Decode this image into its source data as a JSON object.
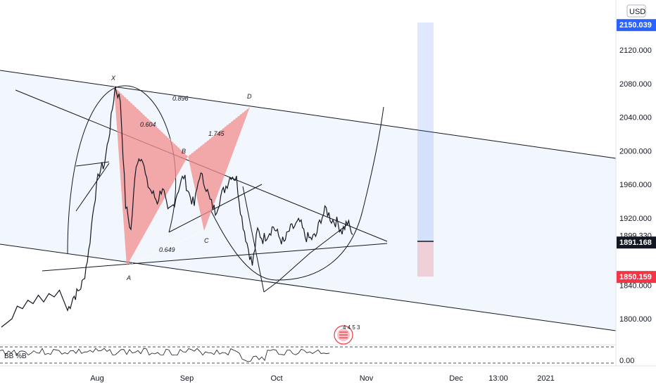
{
  "chart_data": {
    "type": "line",
    "currency": "USD",
    "y_ticks": [
      "2120.000",
      "2080.000",
      "2040.000",
      "2000.000",
      "1960.000",
      "1920.000",
      "1840.000",
      "1800.000"
    ],
    "y_tick_values": [
      2120,
      2080,
      2040,
      2000,
      1960,
      1920,
      1840,
      1800
    ],
    "price_ylim": [
      1780,
      2170
    ],
    "x_ticks": [
      "Aug",
      "Sep",
      "Oct",
      "Nov",
      "Dec",
      "13:00",
      "2021"
    ],
    "x_tick_index": [
      0,
      34,
      68,
      102,
      136,
      152,
      170
    ],
    "badges": [
      {
        "text": "2150.039",
        "value": 2150.039,
        "color": "#2962ff"
      },
      {
        "text": "1891.168",
        "value": 1891.168,
        "color": "#131722"
      },
      {
        "text": "1850.159",
        "value": 1850.159,
        "color": "#f23645"
      }
    ],
    "plain_price_label": {
      "text": "1899.330",
      "value": 1899.33
    },
    "pattern": {
      "points": [
        {
          "label": "X",
          "index": 6,
          "value": 2075
        },
        {
          "label": "A",
          "index": 12,
          "value": 1865
        },
        {
          "label": "B",
          "index": 34,
          "value": 1995
        },
        {
          "label": "C",
          "index": 41,
          "value": 1905
        },
        {
          "label": "D",
          "index": 55,
          "value": 2050
        }
      ],
      "ratios": [
        "0.604",
        "1.745",
        "0.896",
        "0.649"
      ],
      "fill": "#f28c8c"
    },
    "indicator": {
      "name": "BB %B",
      "tick": "0.00"
    },
    "event_counts": "4 4 5 3",
    "price_series": [
      1810,
      1825,
      1832,
      1845,
      1880,
      1938,
      1975,
      1985,
      2025,
      2076,
      2060,
      1935,
      1905,
      1986,
      1996,
      1962,
      1950,
      1940,
      1958,
      1925,
      1935,
      1955,
      1970,
      1949,
      1935,
      1972,
      1962,
      1940,
      1928,
      1945,
      1958,
      1972,
      1966,
      1920,
      1890,
      1864,
      1905,
      1895,
      1902,
      1910,
      1898,
      1890,
      1905,
      1910,
      1915,
      1898,
      1895,
      1898,
      1920,
      1930,
      1918,
      1915,
      1905,
      1915,
      1900
    ]
  }
}
